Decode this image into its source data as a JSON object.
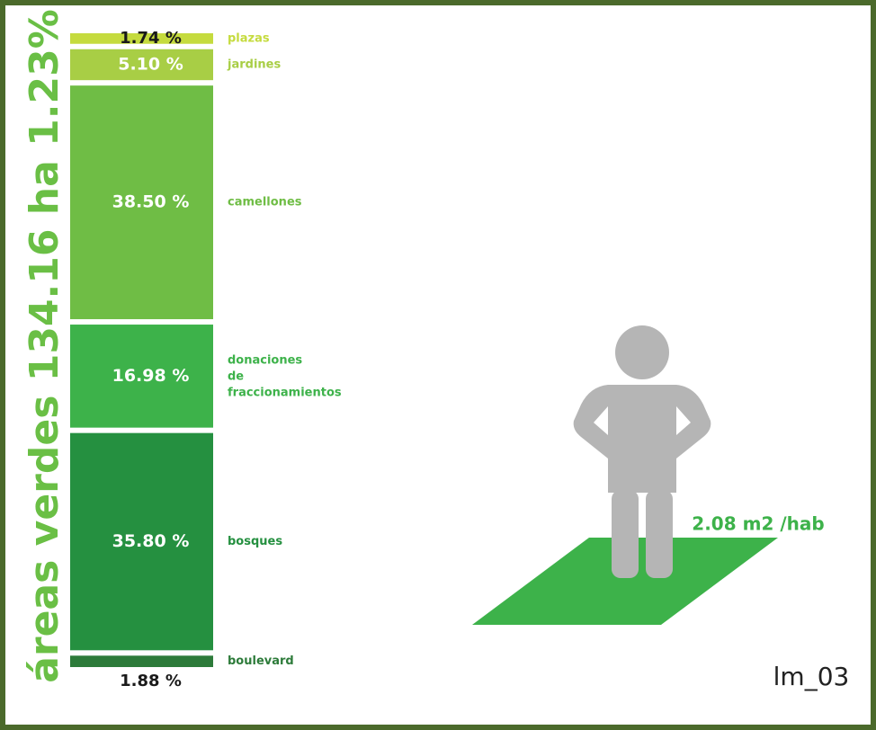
{
  "chart_data": {
    "type": "stacked-bar",
    "title": "áreas verdes 134.16 ha 1.23%",
    "series": [
      {
        "name": "plazas",
        "color": "#c5db3e",
        "values": [
          1.74
        ],
        "value_labels": [
          "1.74 %"
        ]
      },
      {
        "name": "jardines",
        "color": "#a8ce45",
        "values": [
          5.1
        ],
        "value_labels": [
          "5.10 %"
        ]
      },
      {
        "name": "camellones",
        "color": "#6fbd45",
        "values": [
          38.5
        ],
        "value_labels": [
          "38.50 %"
        ]
      },
      {
        "name": "donaciones de fraccionamientos",
        "color": "#3db24a",
        "values": [
          16.98
        ],
        "value_labels": [
          "16.98 %"
        ]
      },
      {
        "name": "bosques",
        "color": "#259040",
        "values": [
          35.8
        ],
        "value_labels": [
          "35.80 %"
        ]
      },
      {
        "name": "boulevard",
        "color": "#2d7b3a",
        "values": [
          1.88
        ],
        "value_labels": [
          "1.88 %"
        ]
      }
    ],
    "annotations": [
      "2.08 m2 /hab",
      "lm_03"
    ]
  }
}
